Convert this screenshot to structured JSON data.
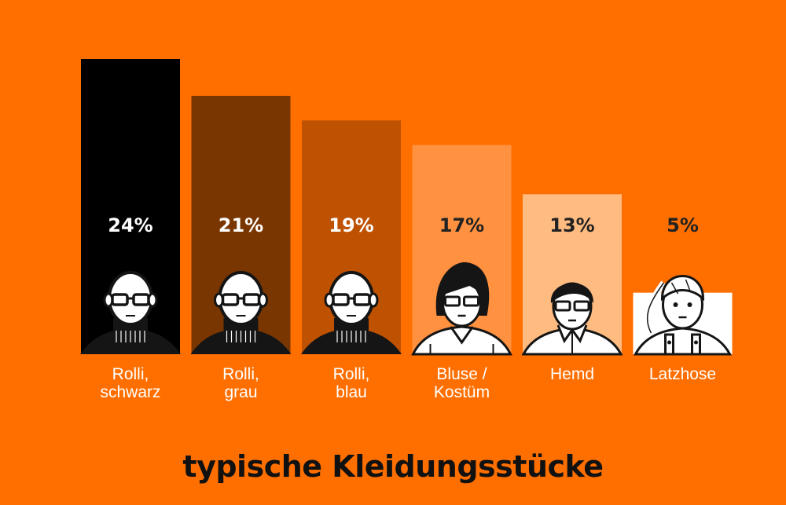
{
  "chart_data": {
    "type": "bar",
    "title": "typische Kleidungsstücke",
    "ylim": [
      0,
      24
    ],
    "categories": [
      {
        "line1": "Rolli,",
        "line2": "schwarz"
      },
      {
        "line1": "Rolli,",
        "line2": "grau"
      },
      {
        "line1": "Rolli,",
        "line2": "blau"
      },
      {
        "line1": "Bluse /",
        "line2": "Kostüm"
      },
      {
        "line1": "Hemd",
        "line2": ""
      },
      {
        "line1": "Latzhose",
        "line2": ""
      }
    ],
    "values": [
      24,
      21,
      19,
      17,
      13,
      5
    ],
    "value_labels": [
      "24%",
      "21%",
      "19%",
      "17%",
      "13%",
      "5%"
    ],
    "bar_colors": [
      "#000000",
      "#7a3600",
      "#bf5200",
      "#ff9140",
      "#ffbb80",
      "#ffffff"
    ],
    "value_label_colors": [
      "#ffffff",
      "#ffffff",
      "#ffffff",
      "#222222",
      "#222222",
      "#222222"
    ],
    "icons": [
      "bald-man-glasses-black-turtleneck-icon",
      "bald-man-glasses-black-turtleneck-icon",
      "bald-man-glasses-black-turtleneck-icon",
      "woman-glasses-blouse-icon",
      "man-glasses-shirt-icon",
      "girl-ponytail-overalls-icon"
    ]
  }
}
